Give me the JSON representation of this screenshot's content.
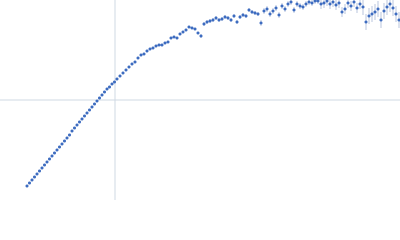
{
  "chart_data": {
    "type": "scatter",
    "xlim": [
      0,
      400
    ],
    "ylim": [
      0,
      200
    ],
    "color": "#3d6cc0",
    "error_color": "#a9b8d6",
    "reference_line_color": "#cfd8e3",
    "reference_lines": {
      "x": 115,
      "y": 100
    },
    "x": [
      27,
      29.5,
      32,
      34.5,
      37,
      39.5,
      42,
      44.5,
      47,
      49.5,
      52,
      54.5,
      57,
      59.5,
      62,
      64.5,
      67,
      69.5,
      72,
      74.5,
      77,
      79.5,
      82,
      84.5,
      87,
      89.5,
      92,
      94.5,
      97,
      99.5,
      102,
      104.5,
      107,
      109.5,
      112,
      114.5,
      117,
      120,
      123,
      126,
      129,
      132,
      135,
      138,
      141,
      144,
      147,
      150,
      153,
      156,
      159,
      162,
      165,
      168,
      171,
      174,
      177,
      180,
      183,
      186,
      189,
      192,
      195,
      198,
      201,
      204,
      207,
      210,
      213,
      216,
      219,
      222,
      225,
      228,
      231,
      234,
      237,
      240,
      243,
      246,
      249,
      252,
      255,
      258,
      261,
      264,
      267,
      270,
      273,
      276,
      279,
      282,
      285,
      288,
      291,
      294,
      297,
      300,
      303,
      306,
      309,
      312,
      315,
      318,
      321,
      324,
      327,
      330,
      333,
      336,
      339,
      342,
      345,
      348,
      351,
      354,
      357,
      360,
      363,
      366,
      369,
      372,
      375,
      378,
      381,
      384,
      387,
      390,
      393,
      396,
      399
    ],
    "values": [
      14,
      17,
      20,
      23,
      26,
      29,
      32,
      35,
      38,
      41,
      44,
      47,
      50,
      53,
      56,
      59,
      62,
      65,
      69,
      72,
      75,
      78,
      81,
      84,
      87,
      90,
      93,
      96,
      99,
      102,
      105,
      108,
      111,
      113,
      116,
      118,
      121,
      124,
      127,
      130,
      133,
      136,
      138,
      142,
      145,
      146,
      149,
      151,
      152,
      154,
      155,
      155,
      157,
      158,
      162,
      163,
      162,
      166,
      168,
      170,
      173,
      172,
      171,
      167,
      164,
      176,
      178,
      179,
      180,
      182,
      180,
      181,
      183,
      182,
      180,
      184,
      178,
      183,
      185,
      184,
      190,
      188,
      187,
      186,
      177,
      189,
      191,
      186,
      189,
      192,
      185,
      194,
      191,
      196,
      198,
      190,
      196,
      194,
      193,
      196,
      198,
      197,
      199,
      199,
      196,
      197,
      199,
      196,
      198,
      195,
      197,
      188,
      191,
      197,
      194,
      198,
      192,
      196,
      193,
      178,
      184,
      186,
      188,
      191,
      180,
      189,
      193,
      196,
      192,
      186,
      180
    ],
    "errors": [
      0,
      0,
      0,
      0,
      0,
      0,
      0,
      0,
      0,
      0,
      0,
      0,
      0,
      0,
      0,
      0,
      0,
      0,
      0,
      0,
      0,
      0,
      0,
      0,
      0,
      0,
      0,
      0,
      0,
      0,
      0,
      0,
      0,
      0,
      0,
      0,
      1,
      1,
      1,
      1,
      1,
      1,
      1,
      1,
      1,
      1,
      1,
      1,
      1,
      1,
      1,
      1,
      1,
      1,
      1,
      1,
      1,
      1,
      1,
      1,
      1,
      1,
      1,
      1,
      2,
      2,
      2,
      2,
      2,
      2,
      2,
      2,
      2,
      2,
      2,
      2,
      2,
      2,
      2,
      2,
      2,
      2,
      2,
      2,
      3,
      3,
      3,
      3,
      3,
      3,
      3,
      3,
      3,
      3,
      3,
      3,
      3,
      3,
      3,
      3,
      3,
      3,
      3,
      3,
      5,
      5,
      5,
      5,
      5,
      5,
      5,
      5,
      5,
      5,
      5,
      5,
      5,
      5,
      8,
      8,
      8,
      8,
      8,
      8,
      8,
      8,
      8,
      8,
      8,
      8,
      8
    ]
  }
}
